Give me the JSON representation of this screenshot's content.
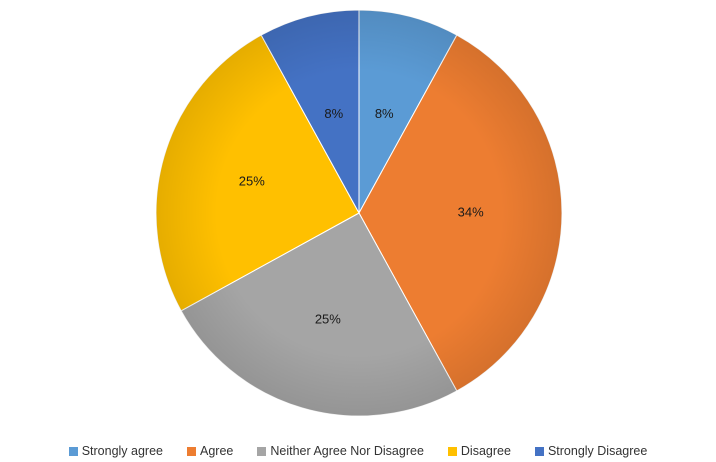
{
  "chart_data": {
    "type": "pie",
    "title": "",
    "slices": [
      {
        "label": "Strongly agree",
        "value": 8,
        "display": "8%",
        "color": "#5B9BD5"
      },
      {
        "label": "Agree",
        "value": 34,
        "display": "34%",
        "color": "#ED7D31"
      },
      {
        "label": "Neither Agree Nor Disagree",
        "value": 25,
        "display": "25%",
        "color": "#A5A5A5"
      },
      {
        "label": "Disagree",
        "value": 25,
        "display": "25%",
        "color": "#FFC000"
      },
      {
        "label": "Strongly Disagree",
        "value": 8,
        "display": "8%",
        "color": "#4472C4"
      }
    ],
    "legend_position": "bottom",
    "start": "12 o'clock, clockwise"
  }
}
